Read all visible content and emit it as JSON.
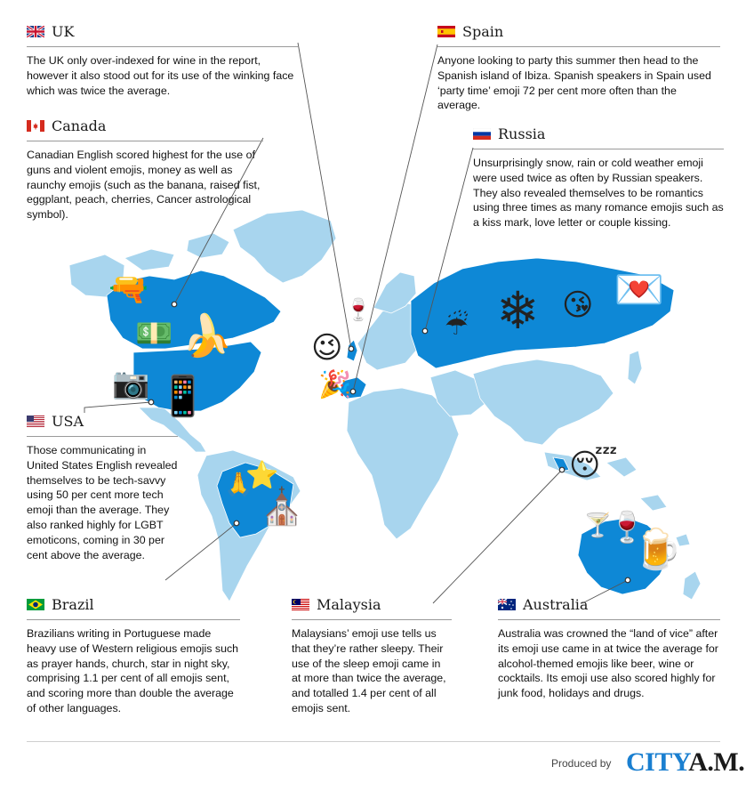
{
  "colors": {
    "highlight_land": "#0e88d6",
    "other_land": "#a8d5ee",
    "leader_line": "#555555",
    "logo_city": "#1a7fd0"
  },
  "regions": [
    {
      "id": "uk",
      "name": "UK",
      "flag": "uk-flag",
      "description": "The UK only over-indexed for wine in the report, however it also stood out for its use of the winking face which was twice the average.",
      "emojis": [
        "wine-glass",
        "winking-face"
      ]
    },
    {
      "id": "canada",
      "name": "Canada",
      "flag": "canada-flag",
      "description": "Canadian English scored highest for the use of guns and violent emojis, money as well as raunchy emojis (such as the banana, raised fist, eggplant, peach, cherries, Cancer astrological symbol).",
      "emojis": [
        "pistol",
        "dollar-banknote",
        "banana"
      ]
    },
    {
      "id": "usa",
      "name": "USA",
      "flag": "usa-flag",
      "description": "Those communicating in United States English revealed themselves to be tech-savvy using 50 per cent more tech emoji than the average. They also ranked highly for LGBT emoticons, coming in 30 per cent above the average.",
      "emojis": [
        "camera",
        "mobile-phone"
      ]
    },
    {
      "id": "brazil",
      "name": "Brazil",
      "flag": "brazil-flag",
      "description": "Brazilians writing in Portuguese made heavy use of Western religious emojis such as prayer hands, church, star in night sky, comprising 1.1 per cent of all emojis sent, and scoring more than double the average of other languages.",
      "emojis": [
        "prayer-hands",
        "star",
        "church"
      ]
    },
    {
      "id": "spain",
      "name": "Spain",
      "flag": "spain-flag",
      "description": "Anyone looking to party this summer then head to the Spanish island of Ibiza. Spanish speakers in Spain used ‘party time’ emoji 72 per cent more often than the average.",
      "emojis": [
        "party-popper"
      ]
    },
    {
      "id": "russia",
      "name": "Russia",
      "flag": "russia-flag",
      "description": "Unsurprisingly snow, rain or cold weather emoji were used twice as often by Russian speakers. They also revealed themselves to be romantics using three times as many romance emojis such as a kiss mark, love letter or couple kissing.",
      "emojis": [
        "umbrella-rain",
        "snowflake",
        "kissing-face",
        "love-letter"
      ]
    },
    {
      "id": "malaysia",
      "name": "Malaysia",
      "flag": "malaysia-flag",
      "description": "Malaysians’ emoji use tells us that they’re rather sleepy. Their use of the sleep emoji came in at more than twice the average, and totalled 1.4 per cent of all emojis sent.",
      "emojis": [
        "sleeping-face"
      ]
    },
    {
      "id": "australia",
      "name": "Australia",
      "flag": "australia-flag",
      "description": "Australia was crowned the “land of vice” after its emoji use came in at twice the average for alcohol-themed emojis like beer, wine or cocktails. Its emoji use also scored highly for junk food, holidays and drugs.",
      "emojis": [
        "cocktail-glass",
        "wine-glass",
        "beer-mug"
      ]
    }
  ],
  "footer": {
    "produced_by": "Produced by",
    "logo_city": "CITY",
    "logo_am": "A.M."
  }
}
